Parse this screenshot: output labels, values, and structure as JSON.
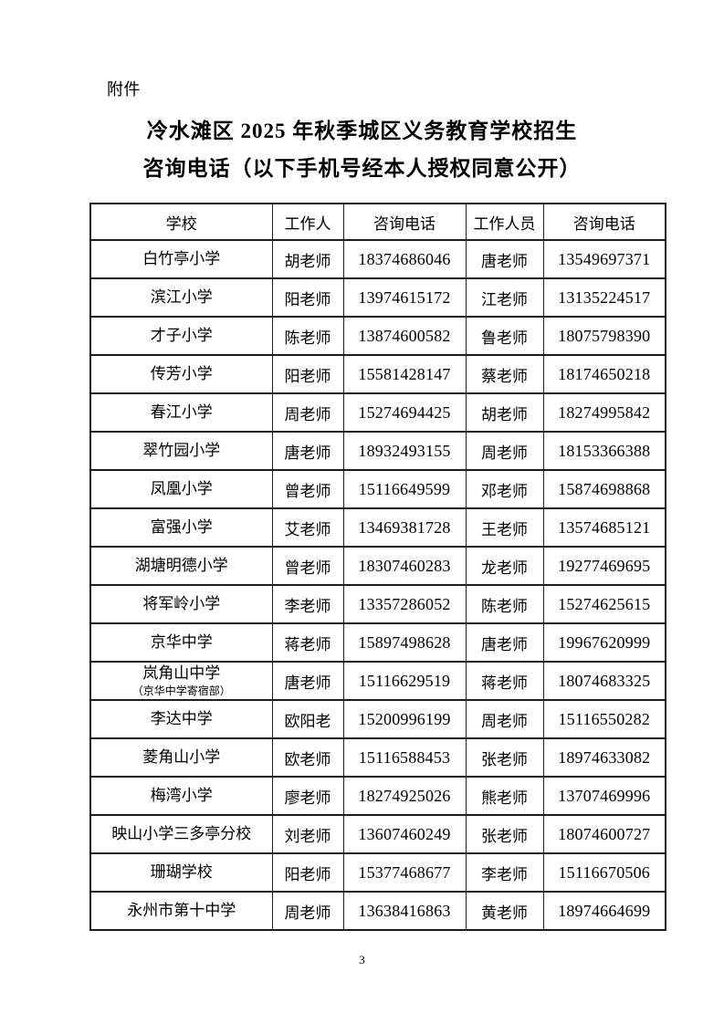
{
  "page": {
    "attachment_label": "附件",
    "title_line1": "冷水滩区 2025 年秋季城区义务教育学校招生",
    "title_line2": "咨询电话（以下手机号经本人授权同意公开）",
    "page_number": "3"
  },
  "colors": {
    "text": "#000000",
    "border": "#1d1d1d",
    "background": "#ffffff"
  },
  "table": {
    "headers": [
      "学校",
      "工作人",
      "咨询电话",
      "工作人员",
      "咨询电话"
    ],
    "rows": [
      {
        "school": "白竹亭小学",
        "school_note": "",
        "staff1": "胡老师",
        "phone1": "18374686046",
        "staff2": "唐老师",
        "phone2": "13549697371"
      },
      {
        "school": "滨江小学",
        "school_note": "",
        "staff1": "阳老师",
        "phone1": "13974615172",
        "staff2": "江老师",
        "phone2": "13135224517"
      },
      {
        "school": "才子小学",
        "school_note": "",
        "staff1": "陈老师",
        "phone1": "13874600582",
        "staff2": "鲁老师",
        "phone2": "18075798390"
      },
      {
        "school": "传芳小学",
        "school_note": "",
        "staff1": "阳老师",
        "phone1": "15581428147",
        "staff2": "蔡老师",
        "phone2": "18174650218"
      },
      {
        "school": "春江小学",
        "school_note": "",
        "staff1": "周老师",
        "phone1": "15274694425",
        "staff2": "胡老师",
        "phone2": "18274995842"
      },
      {
        "school": "翠竹园小学",
        "school_note": "",
        "staff1": "唐老师",
        "phone1": "18932493155",
        "staff2": "周老师",
        "phone2": "18153366388"
      },
      {
        "school": "凤凰小学",
        "school_note": "",
        "staff1": "曾老师",
        "phone1": "15116649599",
        "staff2": "邓老师",
        "phone2": "15874698868"
      },
      {
        "school": "富强小学",
        "school_note": "",
        "staff1": "艾老师",
        "phone1": "13469381728",
        "staff2": "王老师",
        "phone2": "13574685121"
      },
      {
        "school": "湖塘明德小学",
        "school_note": "",
        "staff1": "曾老师",
        "phone1": "18307460283",
        "staff2": "龙老师",
        "phone2": "19277469695"
      },
      {
        "school": "将军岭小学",
        "school_note": "",
        "staff1": "李老师",
        "phone1": "13357286052",
        "staff2": "陈老师",
        "phone2": "15274625615"
      },
      {
        "school": "京华中学",
        "school_note": "",
        "staff1": "蒋老师",
        "phone1": "15897498628",
        "staff2": "唐老师",
        "phone2": "19967620999"
      },
      {
        "school": "岚角山中学",
        "school_note": "（京华中学寄宿部）",
        "staff1": "唐老师",
        "phone1": "15116629519",
        "staff2": "蒋老师",
        "phone2": "18074683325"
      },
      {
        "school": "李达中学",
        "school_note": "",
        "staff1": "欧阳老",
        "phone1": "15200996199",
        "staff2": "周老师",
        "phone2": "15116550282"
      },
      {
        "school": "菱角山小学",
        "school_note": "",
        "staff1": "欧老师",
        "phone1": "15116588453",
        "staff2": "张老师",
        "phone2": "18974633082"
      },
      {
        "school": "梅湾小学",
        "school_note": "",
        "staff1": "廖老师",
        "phone1": "18274925026",
        "staff2": "熊老师",
        "phone2": "13707469996"
      },
      {
        "school": "映山小学三多亭分校",
        "school_note": "",
        "staff1": "刘老师",
        "phone1": "13607460249",
        "staff2": "张老师",
        "phone2": "18074600727"
      },
      {
        "school": "珊瑚学校",
        "school_note": "",
        "staff1": "阳老师",
        "phone1": "15377468677",
        "staff2": "李老师",
        "phone2": "15116670506"
      },
      {
        "school": "永州市第十中学",
        "school_note": "",
        "staff1": "周老师",
        "phone1": "13638416863",
        "staff2": "黄老师",
        "phone2": "18974664699"
      }
    ]
  }
}
